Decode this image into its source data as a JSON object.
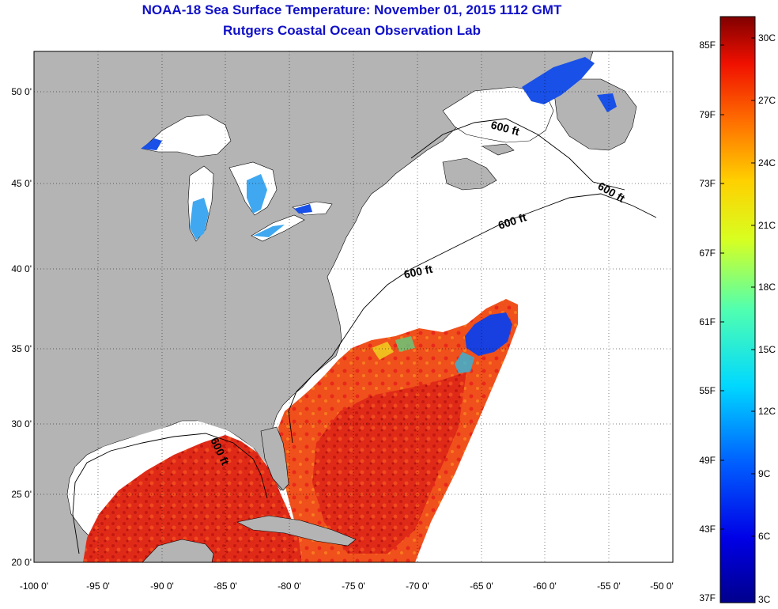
{
  "title_line1": "NOAA-18 Sea Surface Temperature:  November 01, 2015 1112 GMT",
  "title_line2": "Rutgers Coastal Ocean Observation Lab",
  "lon_ticks": [
    "-100 0'",
    "-95 0'",
    "-90 0'",
    "-85 0'",
    "-80 0'",
    "-75 0'",
    "-70 0'",
    "-65 0'",
    "-60 0'",
    "-55 0'",
    "-50 0'"
  ],
  "lat_ticks": [
    "50 0'",
    "45 0'",
    "40 0'",
    "35 0'",
    "30 0'",
    "25 0'",
    "20 0'"
  ],
  "contour_labels": [
    "600 ft",
    "600 ft",
    "600 ft",
    "600 ft",
    "600 ft"
  ],
  "colorbar_f": [
    "85F",
    "79F",
    "73F",
    "67F",
    "61F",
    "55F",
    "49F",
    "43F",
    "37F"
  ],
  "colorbar_c": [
    "30C",
    "27C",
    "24C",
    "21C",
    "18C",
    "15C",
    "12C",
    "9C",
    "6C",
    "3C"
  ],
  "colors": {
    "land": "#b4b4b4",
    "ocean_nodata": "#ffffff",
    "sst_warm": "#e8281c",
    "sst_hot": "#c81a14",
    "sst_orange": "#f06018",
    "cold_blue": "#1840e0",
    "lake_cyan": "#40a8f0",
    "title": "#1010c8"
  }
}
